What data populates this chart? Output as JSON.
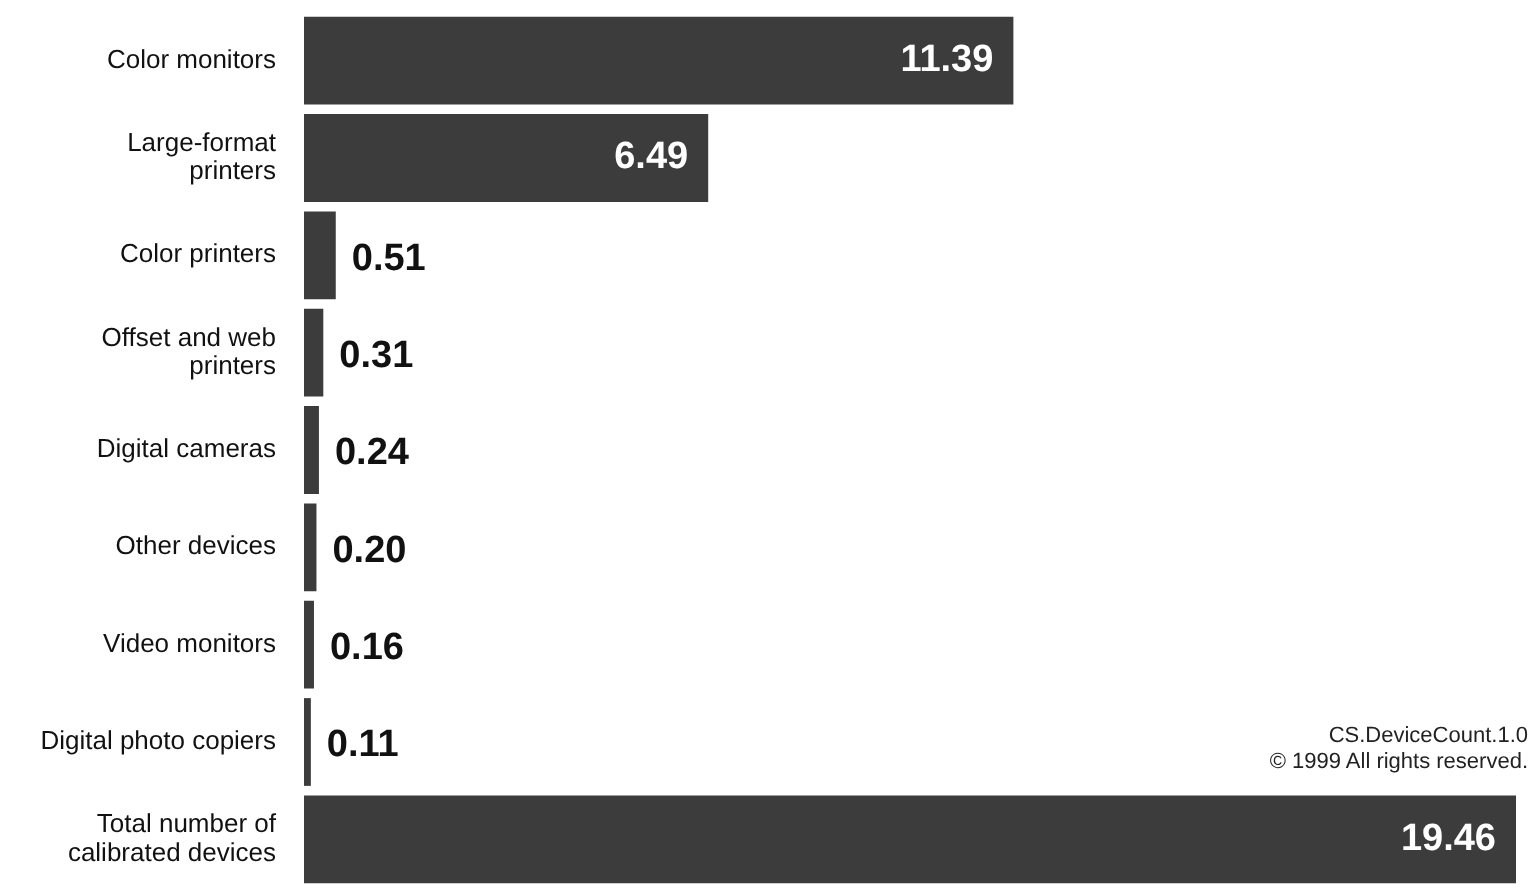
{
  "chart_data": {
    "type": "bar",
    "orientation": "horizontal",
    "categories": [
      "Color monitors",
      "Large-format printers",
      "Color printers",
      "Offset and web printers",
      "Digital cameras",
      "Other devices",
      "Video monitors",
      "Digital photo copiers",
      "Total number of calibrated devices"
    ],
    "values": [
      11.39,
      6.49,
      0.51,
      0.31,
      0.24,
      0.2,
      0.16,
      0.11,
      19.46
    ],
    "value_labels": [
      "11.39",
      "6.49",
      "0.51",
      "0.31",
      "0.24",
      "0.20",
      "0.16",
      "0.11",
      "19.46"
    ],
    "color": "#3c3c3c",
    "annotations": [
      "CS.DeviceCount.1.0",
      "© 1999 All rights reserved."
    ]
  }
}
